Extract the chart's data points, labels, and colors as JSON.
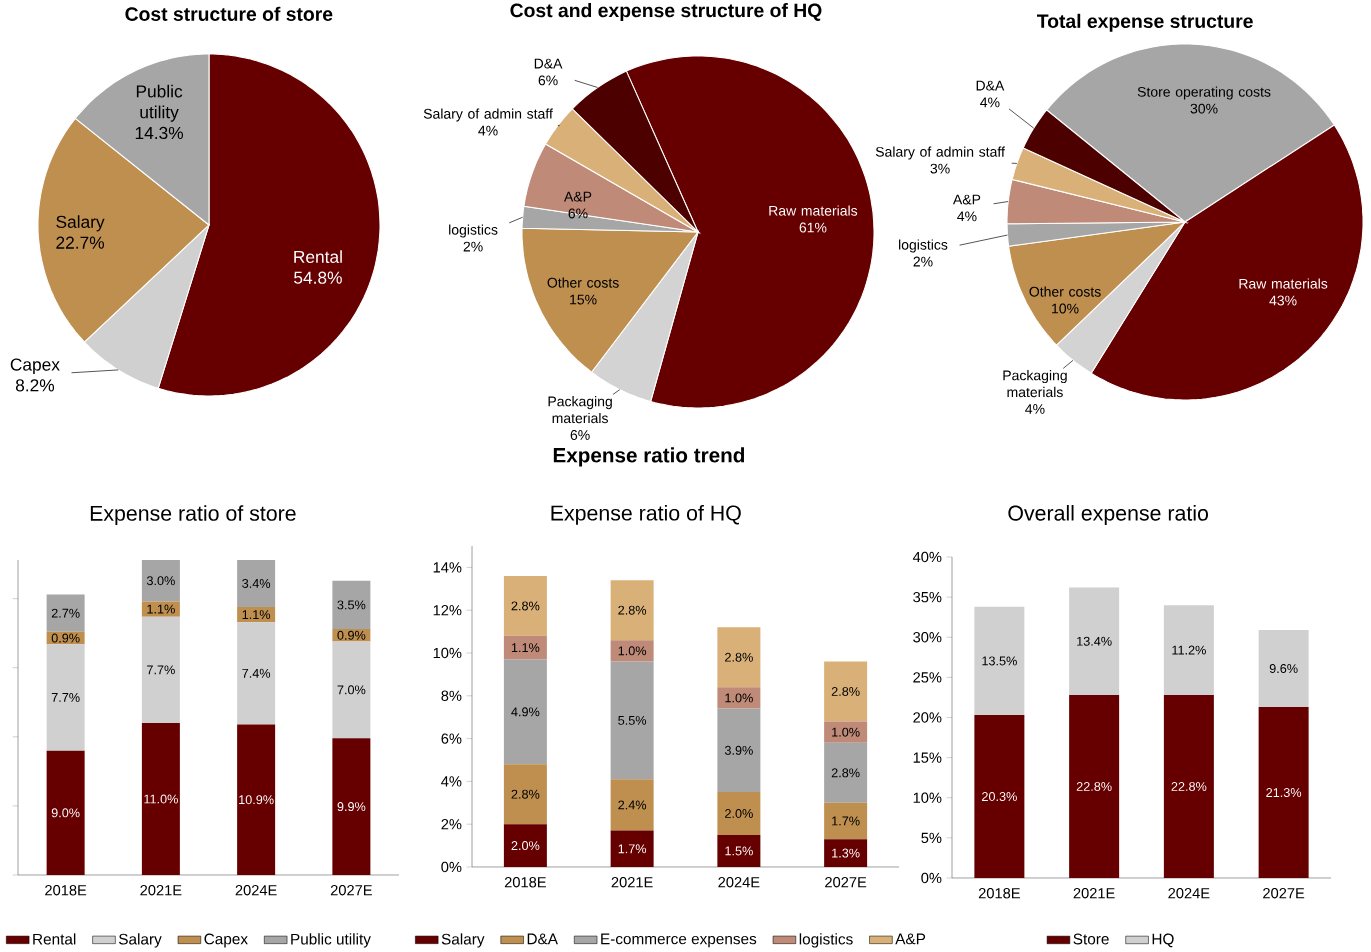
{
  "chart_data": [
    {
      "type": "pie",
      "title": "Cost structure of store",
      "categories": [
        "Rental",
        "Capex",
        "Salary",
        "Public utility"
      ],
      "values": [
        54.8,
        8.2,
        22.7,
        14.3
      ],
      "colors": [
        "#660000",
        "#d0d0d0",
        "#bf8f4f",
        "#a6a6a6"
      ],
      "value_labels": [
        "54.8%",
        "8.2%",
        "22.7%",
        "14.3%"
      ]
    },
    {
      "type": "pie",
      "title": "Cost and expense structure of HQ",
      "categories": [
        "Raw materials",
        "Packaging materials",
        "Other costs",
        "logistics",
        "A&P",
        "Salary of admin staff",
        "D&A"
      ],
      "values": [
        61,
        6,
        15,
        2,
        6,
        4,
        6
      ],
      "colors": [
        "#660000",
        "#d3d3d3",
        "#bf8f4f",
        "#a6a6a6",
        "#bf8a78",
        "#d9b077",
        "#4d0000"
      ],
      "value_labels": [
        "61%",
        "6%",
        "15%",
        "2%",
        "6%",
        "4%",
        "6%"
      ]
    },
    {
      "type": "pie",
      "title": "Total expense structure",
      "categories": [
        "Store operating costs",
        "Raw materials",
        "Packaging materials",
        "Other costs",
        "logistics",
        "A&P",
        "Salary of admin staff",
        "D&A"
      ],
      "values": [
        30,
        43,
        4,
        10,
        2,
        4,
        3,
        4
      ],
      "colors": [
        "#a6a6a6",
        "#660000",
        "#d3d3d3",
        "#bf8f4f",
        "#a6a6a6",
        "#bf8a78",
        "#d9b077",
        "#4d0000"
      ],
      "value_labels": [
        "30%",
        "43%",
        "4%",
        "10%",
        "2%",
        "4%",
        "3%",
        "4%"
      ]
    },
    {
      "type": "bar",
      "title": "Expense ratio of store",
      "annotations": [
        "Expense ratio trend"
      ],
      "categories": [
        "2018E",
        "2021E",
        "2024E",
        "2027E"
      ],
      "stacked": true,
      "legend": "bottom",
      "tick_labels": "x",
      "series": [
        {
          "name": "Rental",
          "color": "#660000",
          "values": [
            9.0,
            11.0,
            10.9,
            9.9
          ],
          "value_labels": [
            "9.0%",
            "11.0%",
            "10.9%",
            "9.9%"
          ]
        },
        {
          "name": "Salary",
          "color": "#d0d0d0",
          "values": [
            7.7,
            7.7,
            7.4,
            7.0
          ],
          "value_labels": [
            "7.7%",
            "7.7%",
            "7.4%",
            "7.0%"
          ]
        },
        {
          "name": "Capex",
          "color": "#bf8f4f",
          "values": [
            0.9,
            1.1,
            1.1,
            0.9
          ],
          "value_labels": [
            "0.9%",
            "1.1%",
            "1.1%",
            "0.9%"
          ]
        },
        {
          "name": "Public utility",
          "color": "#a6a6a6",
          "values": [
            2.7,
            3.0,
            3.4,
            3.5
          ],
          "value_labels": [
            "2.7%",
            "3.0%",
            "3.4%",
            "3.5%"
          ]
        }
      ]
    },
    {
      "type": "bar",
      "title": "Expense ratio of HQ",
      "categories": [
        "2018E",
        "2021E",
        "2024E",
        "2027E"
      ],
      "stacked": true,
      "legend": "bottom",
      "ylim": [
        0,
        15
      ],
      "yticks": [
        {
          "value": 0,
          "label": "0%"
        },
        {
          "value": 2,
          "label": "2%"
        },
        {
          "value": 4,
          "label": "4%"
        },
        {
          "value": 6,
          "label": "6%"
        },
        {
          "value": 8,
          "label": "8%"
        },
        {
          "value": 10,
          "label": "10%"
        },
        {
          "value": 12,
          "label": "12%"
        },
        {
          "value": 14,
          "label": "14%"
        }
      ],
      "series": [
        {
          "name": "Salary",
          "color": "#660000",
          "values": [
            2.0,
            1.7,
            1.5,
            1.3
          ],
          "value_labels": [
            "2.0%",
            "1.7%",
            "1.5%",
            "1.3%"
          ]
        },
        {
          "name": "D&A",
          "color": "#bf8f4f",
          "values": [
            2.8,
            2.4,
            2.0,
            1.7
          ],
          "value_labels": [
            "2.8%",
            "2.4%",
            "2.0%",
            "1.7%"
          ]
        },
        {
          "name": "E-commerce expenses",
          "color": "#a6a6a6",
          "values": [
            4.9,
            5.5,
            3.9,
            2.8
          ],
          "value_labels": [
            "4.9%",
            "5.5%",
            "3.9%",
            "2.8%"
          ]
        },
        {
          "name": "logistics",
          "color": "#bf8a78",
          "values": [
            1.1,
            1.0,
            1.0,
            1.0
          ],
          "value_labels": [
            "1.1%",
            "1.0%",
            "1.0%",
            "1.0%"
          ]
        },
        {
          "name": "A&P",
          "color": "#d9b077",
          "values": [
            2.8,
            2.8,
            2.8,
            2.8
          ],
          "value_labels": [
            "2.8%",
            "2.8%",
            "2.8%",
            "2.8%"
          ]
        }
      ]
    },
    {
      "type": "bar",
      "title": "Overall expense ratio",
      "categories": [
        "2018E",
        "2021E",
        "2024E",
        "2027E"
      ],
      "stacked": true,
      "legend": "bottom",
      "ylim": [
        0,
        40
      ],
      "yticks": [
        {
          "value": 0,
          "label": "0%"
        },
        {
          "value": 5,
          "label": "5%"
        },
        {
          "value": 10,
          "label": "10%"
        },
        {
          "value": 15,
          "label": "15%"
        },
        {
          "value": 20,
          "label": "20%"
        },
        {
          "value": 25,
          "label": "25%"
        },
        {
          "value": 30,
          "label": "30%"
        },
        {
          "value": 35,
          "label": "35%"
        },
        {
          "value": 40,
          "label": "40%"
        }
      ],
      "series": [
        {
          "name": "Store",
          "color": "#660000",
          "values": [
            20.3,
            22.8,
            22.8,
            21.3
          ],
          "value_labels": [
            "20.3%",
            "22.8%",
            "22.8%",
            "21.3%"
          ]
        },
        {
          "name": "HQ",
          "color": "#d0d0d0",
          "values": [
            13.5,
            13.4,
            11.2,
            9.6
          ],
          "value_labels": [
            "13.5%",
            "13.4%",
            "11.2%",
            "9.6%"
          ]
        }
      ]
    }
  ]
}
